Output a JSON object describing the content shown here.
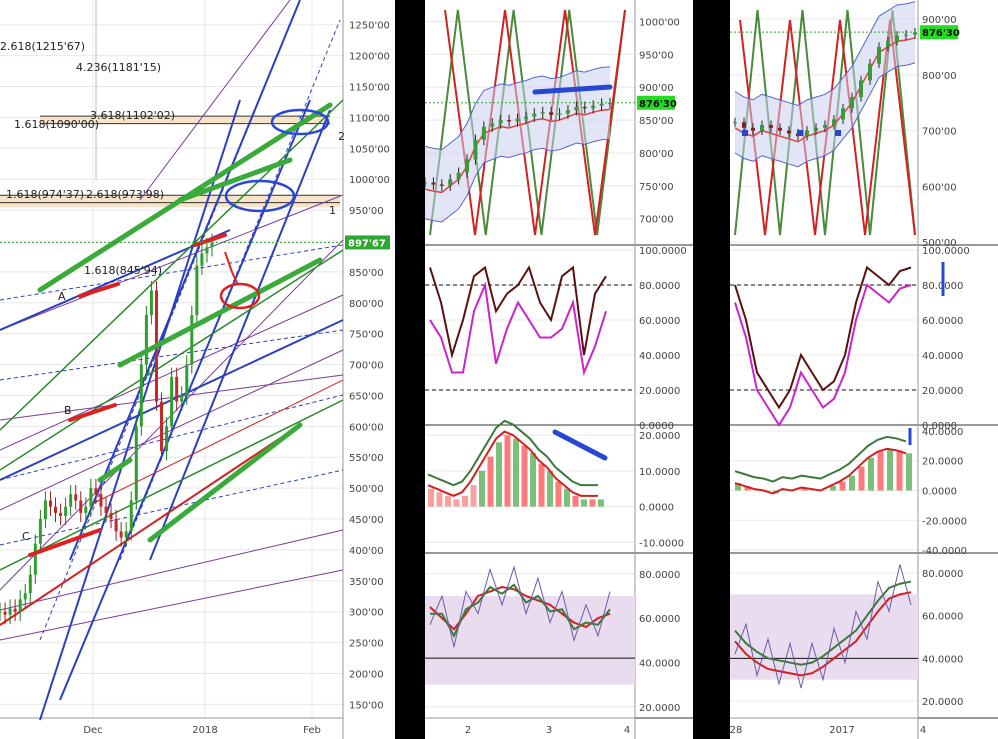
{
  "colors": {
    "background": "#ffffff",
    "grid": "#e8e8e8",
    "channel_blue": "#2b3fbf",
    "fib_green": "#3aaa3a",
    "trend_red": "#d42020",
    "purple": "#7a3a9a",
    "last_price_green": "#2ea82e",
    "hand_blue": "#2847d4",
    "hand_red": "#e02020",
    "fib_band": "#f7e3c8"
  },
  "chart_data": [
    {
      "type": "line",
      "panel": "main-price-chart",
      "x_tick_labels": [
        "Dec",
        "2018",
        "Feb"
      ],
      "y_tick_labels": [
        "1250'00",
        "1200'00",
        "1150'00",
        "1100'00",
        "1050'00",
        "1000'00",
        "950'00",
        "900'00",
        "850'00",
        "800'00",
        "750'00",
        "700'00",
        "650'00",
        "600'00",
        "550'00",
        "500'00",
        "450'00",
        "400'00",
        "350'00",
        "300'00",
        "250'00",
        "200'00",
        "150'00"
      ],
      "ylim": [
        128,
        1290
      ],
      "last_price_label": "897'67",
      "fib_annotations": [
        "2.618(1215'67)",
        "4.236(1181'15)",
        "3.618(1102'02)",
        "1.618(1090'00)",
        "1.618(974'37)",
        "2.618(973'98)",
        "1.618(845'94)"
      ],
      "hand_letters": [
        "A",
        "B",
        "C"
      ],
      "hand_numbers": [
        "2",
        "1"
      ],
      "series": [
        {
          "values": [
            300,
            295,
            305,
            300,
            320,
            330,
            360,
            410,
            450,
            480,
            470,
            460,
            455,
            470,
            490,
            480,
            460,
            470,
            500,
            490,
            470,
            460,
            450,
            430,
            420,
            430,
            480,
            600,
            700,
            780,
            820,
            640,
            560,
            600,
            680,
            640,
            650,
            700,
            780,
            860,
            880,
            890,
            897
          ]
        }
      ]
    },
    {
      "type": "line",
      "panel": "middle-price-chart",
      "x_tick_labels": [
        "2",
        "3",
        "4"
      ],
      "y_tick_labels": [
        "1000'00",
        "950'00",
        "900'00",
        "850'00",
        "800'00",
        "750'00",
        "700'00"
      ],
      "ylim": [
        660,
        1025
      ],
      "last_price_label": "876'30",
      "series": [
        {
          "values": [
            755,
            752,
            750,
            760,
            770,
            790,
            820,
            840,
            845,
            850,
            848,
            852,
            855,
            860,
            862,
            858,
            860,
            865,
            870,
            868,
            872,
            875,
            876
          ]
        }
      ]
    },
    {
      "type": "line",
      "panel": "middle-stochastic",
      "y_tick_labels": [
        "100.0000",
        "80.0000",
        "60.0000",
        "40.0000",
        "20.0000",
        "0.0000"
      ],
      "ylim": [
        0,
        100
      ]
    },
    {
      "type": "bar",
      "panel": "middle-macd",
      "y_tick_labels": [
        "20.0000",
        "10.0000",
        "0.0000",
        "-10.0000"
      ],
      "ylim": [
        -13,
        22
      ]
    },
    {
      "type": "line",
      "panel": "middle-rsi",
      "y_tick_labels": [
        "80.0000",
        "60.0000",
        "40.0000",
        "20.0000"
      ],
      "ylim": [
        15,
        88
      ]
    },
    {
      "type": "line",
      "panel": "right-price-chart",
      "x_tick_labels": [
        "28",
        "2017",
        "4"
      ],
      "y_tick_labels": [
        "900'00",
        "800'00",
        "700'00",
        "600'00",
        "500'00"
      ],
      "ylim": [
        495,
        925
      ],
      "last_price_label": "876'30",
      "series": [
        {
          "values": [
            715,
            705,
            700,
            710,
            705,
            700,
            695,
            690,
            700,
            705,
            710,
            720,
            740,
            760,
            790,
            820,
            850,
            860,
            870,
            872,
            876
          ]
        }
      ]
    },
    {
      "type": "line",
      "panel": "right-stochastic",
      "y_tick_labels": [
        "100.0000",
        "80.0000",
        "60.0000",
        "40.0000",
        "20.0000",
        "0.0000"
      ],
      "ylim": [
        0,
        100
      ]
    },
    {
      "type": "bar",
      "panel": "right-macd",
      "y_tick_labels": [
        "40.0000",
        "20.0000",
        "0.0000",
        "-20.0000",
        "-40.0000"
      ],
      "ylim": [
        -42,
        42
      ]
    },
    {
      "type": "line",
      "panel": "right-rsi",
      "y_tick_labels": [
        "80.0000",
        "60.0000",
        "40.0000",
        "20.0000"
      ],
      "ylim": [
        12,
        88
      ]
    }
  ]
}
